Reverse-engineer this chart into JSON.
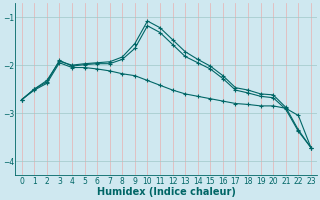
{
  "xlabel": "Humidex (Indice chaleur)",
  "bg_color": "#cfe8f0",
  "grid_color_v": "#e8b0b0",
  "grid_color_h": "#a0c8c8",
  "line_color": "#006666",
  "xlim": [
    -0.5,
    23.5
  ],
  "ylim": [
    -4.3,
    -0.7
  ],
  "yticks": [
    -4,
    -3,
    -2,
    -1
  ],
  "xticks": [
    0,
    1,
    2,
    3,
    4,
    5,
    6,
    7,
    8,
    9,
    10,
    11,
    12,
    13,
    14,
    15,
    16,
    17,
    18,
    19,
    20,
    21,
    22,
    23
  ],
  "line1_x": [
    0,
    1,
    2,
    3,
    4,
    5,
    6,
    7,
    8,
    9,
    10,
    11,
    12,
    13,
    14,
    15,
    16,
    17,
    18,
    19,
    20,
    21,
    22,
    23
  ],
  "line1_y": [
    -2.72,
    -2.52,
    -2.38,
    -1.95,
    -2.05,
    -2.05,
    -2.08,
    -2.12,
    -2.18,
    -2.22,
    -2.32,
    -2.42,
    -2.52,
    -2.6,
    -2.65,
    -2.7,
    -2.75,
    -2.8,
    -2.82,
    -2.85,
    -2.85,
    -2.9,
    -3.05,
    -3.72
  ],
  "line2_x": [
    0,
    1,
    2,
    3,
    4,
    5,
    6,
    7,
    8,
    9,
    10,
    11,
    12,
    13,
    14,
    15,
    16,
    17,
    18,
    19,
    20,
    21,
    22,
    23
  ],
  "line2_y": [
    -2.72,
    -2.5,
    -2.32,
    -1.92,
    -2.0,
    -1.97,
    -1.95,
    -1.93,
    -1.83,
    -1.55,
    -1.08,
    -1.22,
    -1.47,
    -1.72,
    -1.88,
    -2.02,
    -2.22,
    -2.47,
    -2.52,
    -2.6,
    -2.62,
    -2.88,
    -3.35,
    -3.72
  ],
  "line3_x": [
    0,
    1,
    2,
    3,
    4,
    5,
    6,
    7,
    8,
    9,
    10,
    11,
    12,
    13,
    14,
    15,
    16,
    17,
    18,
    19,
    20,
    21,
    22,
    23
  ],
  "line3_y": [
    -2.72,
    -2.5,
    -2.35,
    -1.9,
    -2.02,
    -1.99,
    -1.97,
    -1.97,
    -1.88,
    -1.65,
    -1.18,
    -1.32,
    -1.57,
    -1.82,
    -1.95,
    -2.08,
    -2.28,
    -2.52,
    -2.58,
    -2.65,
    -2.68,
    -2.92,
    -3.38,
    -3.72
  ]
}
